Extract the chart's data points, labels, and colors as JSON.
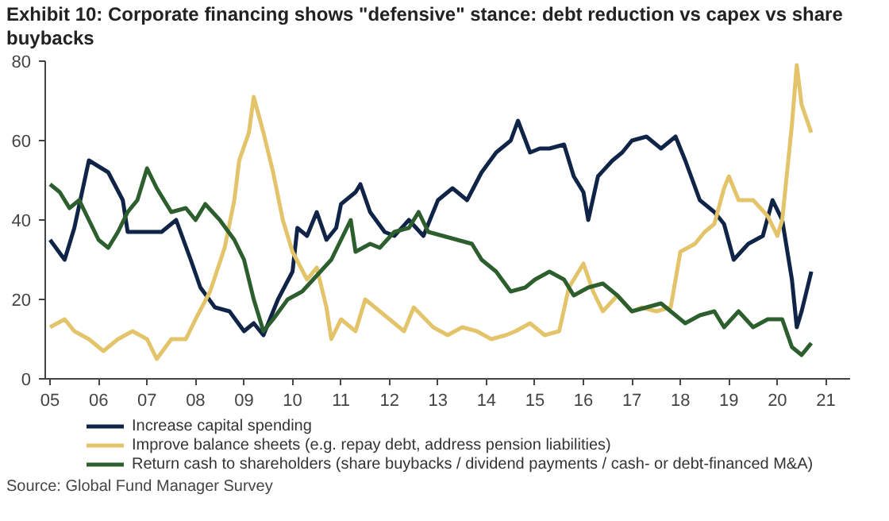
{
  "chart_data": {
    "type": "line",
    "title": "Exhibit 10: Corporate financing shows \"defensive\" stance: debt reduction vs capex vs share buybacks",
    "annotations": [
      "Source: Global Fund Manager Survey"
    ],
    "xlim": [
      2004.9,
      2021.5
    ],
    "ylim": [
      0,
      80
    ],
    "xticks": [
      {
        "value": 2005,
        "label": "05"
      },
      {
        "value": 2006,
        "label": "06"
      },
      {
        "value": 2007,
        "label": "07"
      },
      {
        "value": 2008,
        "label": "08"
      },
      {
        "value": 2009,
        "label": "09"
      },
      {
        "value": 2010,
        "label": "10"
      },
      {
        "value": 2011,
        "label": "11"
      },
      {
        "value": 2012,
        "label": "12"
      },
      {
        "value": 2013,
        "label": "13"
      },
      {
        "value": 2014,
        "label": "14"
      },
      {
        "value": 2015,
        "label": "15"
      },
      {
        "value": 2016,
        "label": "16"
      },
      {
        "value": 2017,
        "label": "17"
      },
      {
        "value": 2018,
        "label": "18"
      },
      {
        "value": 2019,
        "label": "19"
      },
      {
        "value": 2020,
        "label": "20"
      },
      {
        "value": 2021,
        "label": "21"
      }
    ],
    "yticks": [
      0,
      20,
      40,
      60,
      80
    ],
    "grid": false,
    "legend": "bottom",
    "marker": "none",
    "line_style": "solid",
    "series": [
      {
        "name": "Increase capital spending",
        "color": "#0f2447",
        "x": [
          2005.0,
          2005.3,
          2005.5,
          2005.8,
          2006.2,
          2006.5,
          2006.6,
          2007.0,
          2007.3,
          2007.6,
          2007.9,
          2008.1,
          2008.4,
          2008.7,
          2009.0,
          2009.2,
          2009.4,
          2009.7,
          2010.0,
          2010.1,
          2010.3,
          2010.5,
          2010.7,
          2010.9,
          2011.0,
          2011.3,
          2011.4,
          2011.6,
          2011.9,
          2012.1,
          2012.4,
          2012.7,
          2013.0,
          2013.3,
          2013.6,
          2013.9,
          2014.2,
          2014.5,
          2014.65,
          2014.9,
          2015.1,
          2015.3,
          2015.6,
          2015.8,
          2016.0,
          2016.1,
          2016.3,
          2016.6,
          2016.8,
          2017.0,
          2017.3,
          2017.6,
          2017.9,
          2018.1,
          2018.4,
          2018.7,
          2018.9,
          2019.1,
          2019.4,
          2019.7,
          2019.9,
          2020.1,
          2020.3,
          2020.4,
          2020.5,
          2020.7
        ],
        "values": [
          35,
          30,
          38,
          55,
          52,
          45,
          37,
          37,
          37,
          40,
          30,
          23,
          18,
          17,
          12,
          14,
          11,
          20,
          27,
          38,
          36,
          42,
          35,
          38,
          44,
          47,
          49,
          42,
          37,
          36,
          40,
          36,
          45,
          48,
          45,
          52,
          57,
          60,
          65,
          57,
          58,
          58,
          59,
          51,
          47,
          40,
          51,
          55,
          57,
          60,
          61,
          58,
          61,
          55,
          45,
          42,
          39,
          30,
          34,
          36,
          45,
          40,
          25,
          13,
          17,
          27
        ]
      },
      {
        "name": "Improve balance sheets (e.g. repay debt, address pension liabilities)",
        "color": "#e3c46a",
        "x": [
          2005.0,
          2005.3,
          2005.5,
          2005.8,
          2006.1,
          2006.4,
          2006.7,
          2007.0,
          2007.2,
          2007.5,
          2007.8,
          2008.0,
          2008.3,
          2008.6,
          2008.8,
          2008.9,
          2009.1,
          2009.2,
          2009.4,
          2009.6,
          2009.8,
          2010.0,
          2010.3,
          2010.5,
          2010.7,
          2010.8,
          2011.0,
          2011.3,
          2011.5,
          2011.7,
          2012.0,
          2012.3,
          2012.5,
          2012.9,
          2013.2,
          2013.5,
          2013.8,
          2014.1,
          2014.4,
          2014.6,
          2014.9,
          2015.2,
          2015.5,
          2015.7,
          2016.0,
          2016.2,
          2016.4,
          2016.7,
          2017.0,
          2017.2,
          2017.5,
          2017.8,
          2018.0,
          2018.3,
          2018.5,
          2018.7,
          2018.9,
          2019.0,
          2019.2,
          2019.5,
          2019.8,
          2020.0,
          2020.1,
          2020.3,
          2020.4,
          2020.5,
          2020.7
        ],
        "values": [
          13,
          15,
          12,
          10,
          7,
          10,
          12,
          10,
          5,
          10,
          10,
          15,
          22,
          33,
          45,
          55,
          62,
          71,
          62,
          52,
          40,
          32,
          25,
          28,
          18,
          10,
          15,
          12,
          20,
          18,
          15,
          12,
          18,
          13,
          11,
          13,
          12,
          10,
          11,
          12,
          14,
          11,
          12,
          23,
          29,
          22,
          17,
          21,
          17,
          18,
          17,
          18,
          32,
          34,
          37,
          39,
          48,
          51,
          45,
          45,
          41,
          36,
          40,
          64,
          79,
          69,
          62
        ]
      },
      {
        "name": "Return cash to shareholders (share buybacks / dividend payments / cash- or debt-financed M&A)",
        "color": "#2c5e2e",
        "x": [
          2005.0,
          2005.2,
          2005.4,
          2005.6,
          2005.8,
          2006.0,
          2006.2,
          2006.4,
          2006.6,
          2006.8,
          2007.0,
          2007.2,
          2007.5,
          2007.8,
          2008.0,
          2008.2,
          2008.5,
          2008.8,
          2009.0,
          2009.2,
          2009.4,
          2009.6,
          2009.9,
          2010.2,
          2010.5,
          2010.8,
          2011.0,
          2011.2,
          2011.3,
          2011.6,
          2011.8,
          2012.1,
          2012.4,
          2012.6,
          2012.8,
          2013.1,
          2013.4,
          2013.7,
          2013.9,
          2014.2,
          2014.5,
          2014.8,
          2015.0,
          2015.3,
          2015.6,
          2015.8,
          2016.1,
          2016.4,
          2016.7,
          2017.0,
          2017.3,
          2017.6,
          2017.8,
          2018.1,
          2018.4,
          2018.7,
          2018.9,
          2019.2,
          2019.5,
          2019.8,
          2020.1,
          2020.3,
          2020.5,
          2020.7
        ],
        "values": [
          49,
          47,
          43,
          45,
          40,
          35,
          33,
          37,
          42,
          45,
          53,
          48,
          42,
          43,
          40,
          44,
          40,
          35,
          30,
          20,
          12,
          15,
          20,
          22,
          26,
          30,
          35,
          40,
          32,
          34,
          33,
          37,
          38,
          42,
          37,
          36,
          35,
          34,
          30,
          27,
          22,
          23,
          25,
          27,
          25,
          21,
          23,
          24,
          21,
          17,
          18,
          19,
          17,
          14,
          16,
          17,
          13,
          17,
          13,
          15,
          15,
          8,
          6,
          9
        ]
      }
    ]
  }
}
